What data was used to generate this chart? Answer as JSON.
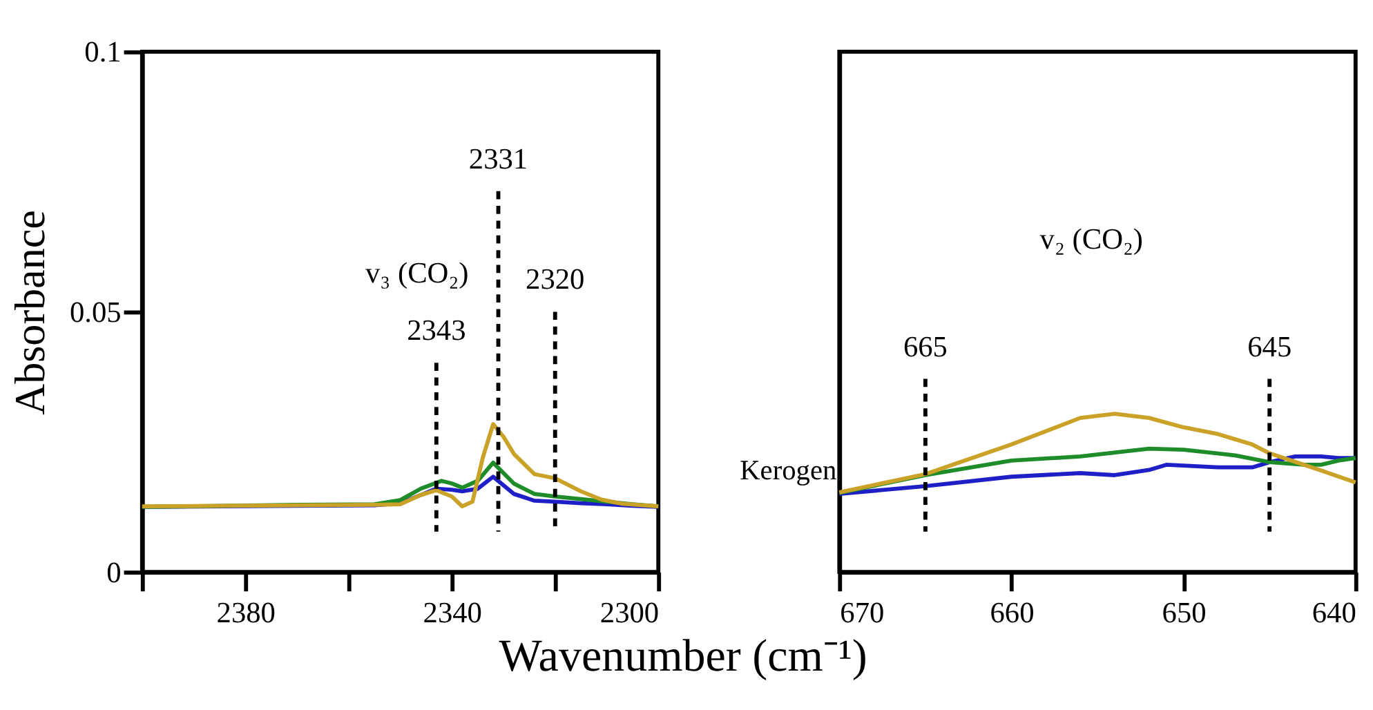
{
  "chart_data": [
    {
      "type": "line",
      "ylabel": "Absorbance",
      "xlabel": "Wavenumber (cm⁻¹)",
      "xlim": [
        2400,
        2300
      ],
      "xticks": [
        {
          "value": 2400,
          "label": null
        },
        2380,
        {
          "value": 2360,
          "label": null
        },
        2340,
        {
          "value": 2320,
          "label": null
        },
        2300
      ],
      "ylim": [
        0,
        0.1
      ],
      "yticks": [
        0,
        0.05,
        0.1
      ],
      "grid": false,
      "line_style": "solid",
      "marker": "none",
      "series": [
        {
          "color": "#1f1fc8",
          "x": [
            2400,
            2370,
            2355,
            2350,
            2346,
            2343,
            2340,
            2338,
            2335,
            2332,
            2328,
            2324,
            2320,
            2315,
            2310,
            2305,
            2300
          ],
          "values": [
            0.0125,
            0.0127,
            0.0128,
            0.0132,
            0.0148,
            0.016,
            0.0158,
            0.0155,
            0.016,
            0.0183,
            0.015,
            0.0137,
            0.0135,
            0.0132,
            0.013,
            0.0127,
            0.0125
          ]
        },
        {
          "color": "#1e8c28",
          "x": [
            2400,
            2370,
            2355,
            2350,
            2346,
            2342,
            2340,
            2338,
            2335,
            2332,
            2328,
            2324,
            2320,
            2315,
            2310,
            2305,
            2300
          ],
          "values": [
            0.0125,
            0.0129,
            0.013,
            0.0138,
            0.016,
            0.0175,
            0.017,
            0.0162,
            0.0175,
            0.021,
            0.017,
            0.015,
            0.0145,
            0.014,
            0.0135,
            0.013,
            0.0126
          ]
        },
        {
          "color": "#c9a227",
          "x": [
            2400,
            2370,
            2355,
            2350,
            2346,
            2343,
            2340,
            2338,
            2336,
            2334,
            2332,
            2330,
            2328,
            2324,
            2320,
            2315,
            2311,
            2307,
            2300
          ],
          "values": [
            0.0126,
            0.0128,
            0.0129,
            0.013,
            0.0148,
            0.0157,
            0.0145,
            0.0126,
            0.0135,
            0.022,
            0.0284,
            0.026,
            0.0227,
            0.0188,
            0.018,
            0.0155,
            0.0139,
            0.0131,
            0.0126
          ]
        }
      ],
      "ref_lines": [
        {
          "axis": "x",
          "value": 2343,
          "label": "2343",
          "line_style": "dashed"
        },
        {
          "axis": "x",
          "value": 2331,
          "label": "2331",
          "line_style": "dashed"
        },
        {
          "axis": "x",
          "value": 2320,
          "label": "2320",
          "line_style": "dashed"
        }
      ],
      "annotations": [
        "v₃ (CO₂)"
      ]
    },
    {
      "type": "line",
      "xlim": [
        670,
        640
      ],
      "xticks": [
        670,
        660,
        650,
        640
      ],
      "ylim": [
        0,
        0.1
      ],
      "tick_labels": "x",
      "grid": false,
      "line_style": "solid",
      "marker": "none",
      "series": [
        {
          "color": "#1f1fc8",
          "x": [
            670,
            665,
            660,
            656,
            654,
            652,
            651,
            648,
            646,
            645,
            643.5,
            642,
            641,
            640
          ],
          "values": [
            0.015,
            0.0165,
            0.0183,
            0.019,
            0.0186,
            0.0196,
            0.0206,
            0.0201,
            0.0201,
            0.0211,
            0.0222,
            0.0222,
            0.0219,
            0.0219
          ]
        },
        {
          "color": "#1e8c28",
          "x": [
            670,
            665,
            660,
            656,
            652,
            650,
            647,
            645,
            643,
            642,
            641,
            640
          ],
          "values": [
            0.0152,
            0.0186,
            0.0214,
            0.0222,
            0.0237,
            0.0235,
            0.0224,
            0.0211,
            0.0206,
            0.0206,
            0.0214,
            0.0219
          ]
        },
        {
          "color": "#c9a227",
          "x": [
            670,
            665,
            660,
            656,
            654,
            652,
            650,
            648,
            646,
            645,
            642,
            640
          ],
          "values": [
            0.0153,
            0.0188,
            0.0245,
            0.0296,
            0.0304,
            0.0296,
            0.0278,
            0.0265,
            0.0245,
            0.0228,
            0.0195,
            0.0172
          ]
        }
      ],
      "ref_lines": [
        {
          "axis": "x",
          "value": 665,
          "label": "665",
          "line_style": "dashed"
        },
        {
          "axis": "x",
          "value": 645,
          "label": "645",
          "line_style": "dashed"
        }
      ],
      "annotations": [
        "v₂ (CO₂)",
        "Kerogen"
      ]
    }
  ]
}
